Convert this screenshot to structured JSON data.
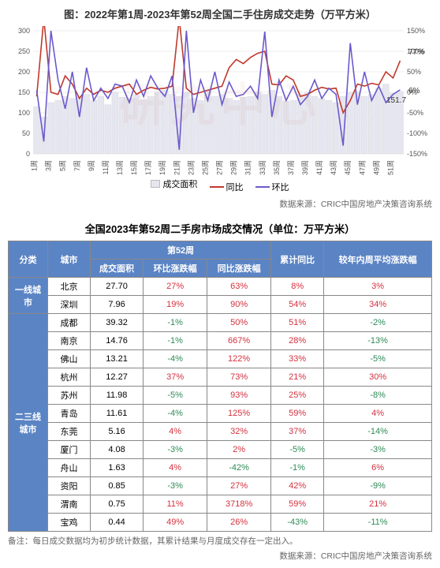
{
  "chart": {
    "title": "图：2022年第1周-2023年第52周全国二手住房成交走势（万平方米）",
    "type": "combo-bar-line",
    "y1label_ticks": [
      0,
      50,
      100,
      150,
      200,
      250,
      300
    ],
    "y2label_ticks": [
      -150,
      -100,
      -50,
      0,
      50,
      100,
      150
    ],
    "y1lim": [
      0,
      300
    ],
    "y2lim": [
      -150,
      150
    ],
    "x_labels": [
      "1周",
      "3周",
      "5周",
      "7周",
      "9周",
      "11周",
      "13周",
      "15周",
      "17周",
      "19周",
      "21周",
      "23周",
      "25周",
      "27周",
      "29周",
      "31周",
      "33周",
      "35周",
      "37周",
      "39周",
      "41周",
      "43周",
      "45周",
      "47周",
      "49周",
      "51周"
    ],
    "bar_color": "#e6e6f0",
    "line1_color": "#c0392b",
    "line2_color": "#6a5acd",
    "axis_fontsize": 9,
    "title_fontsize": 13,
    "annotations": {
      "a1": "77%",
      "a2": "6%",
      "a3": "151.7"
    },
    "legend": {
      "bars": "成交面积",
      "line1": "同比",
      "line2": "环比"
    },
    "bars": [
      115,
      90,
      125,
      130,
      140,
      135,
      140,
      145,
      130,
      140,
      120,
      150,
      138,
      135,
      145,
      132,
      140,
      150,
      155,
      145,
      140,
      150,
      135,
      130,
      155,
      140,
      145,
      135,
      130,
      138,
      140,
      150,
      145,
      155,
      140,
      128,
      130,
      145,
      150,
      140,
      135,
      130,
      125,
      140,
      150,
      152,
      140,
      145,
      160,
      170,
      148,
      152
    ],
    "yoy": [
      -10,
      180,
      0,
      -5,
      40,
      20,
      -15,
      10,
      -5,
      5,
      0,
      10,
      15,
      20,
      -5,
      5,
      12,
      8,
      10,
      15,
      180,
      10,
      -5,
      0,
      5,
      10,
      15,
      60,
      80,
      70,
      85,
      95,
      100,
      20,
      18,
      40,
      30,
      -10,
      -5,
      5,
      12,
      8,
      10,
      -50,
      -20,
      20,
      15,
      22,
      18,
      50,
      35,
      77
    ],
    "mom": [
      5,
      -120,
      150,
      30,
      -40,
      50,
      -60,
      60,
      -20,
      10,
      -15,
      20,
      15,
      -25,
      30,
      -10,
      40,
      10,
      -10,
      40,
      -140,
      150,
      -50,
      30,
      -20,
      50,
      -30,
      25,
      -10,
      -5,
      15,
      -15,
      148,
      -60,
      30,
      -20,
      15,
      -30,
      -10,
      30,
      -15,
      10,
      -5,
      -130,
      120,
      -30,
      50,
      -20,
      15,
      -25,
      -5,
      6
    ],
    "watermark": "研究中心"
  },
  "source": "数据来源：CRIC中国房地产决策咨询系统",
  "table": {
    "title": "全国2023年第52周二手房市场成交情况（单位：万平方米）",
    "headers": {
      "cat": "分类",
      "city": "城市",
      "week": "第52周",
      "area": "成交面积",
      "mom": "环比涨跌幅",
      "yoy": "同比涨跌幅",
      "cum": "累计同比",
      "avg": "较年内周平均涨跌幅"
    },
    "groups": [
      {
        "name": "一线城市",
        "rows": [
          {
            "city": "北京",
            "area": "27.70",
            "mom": "27%",
            "yoy": "63%",
            "cum": "8%",
            "avg": "3%"
          },
          {
            "city": "深圳",
            "area": "7.96",
            "mom": "19%",
            "yoy": "90%",
            "cum": "54%",
            "avg": "34%"
          }
        ]
      },
      {
        "name": "二三线城市",
        "rows": [
          {
            "city": "成都",
            "area": "39.32",
            "mom": "-1%",
            "yoy": "50%",
            "cum": "51%",
            "avg": "-2%"
          },
          {
            "city": "南京",
            "area": "14.76",
            "mom": "-1%",
            "yoy": "667%",
            "cum": "28%",
            "avg": "-13%"
          },
          {
            "city": "佛山",
            "area": "13.21",
            "mom": "-4%",
            "yoy": "122%",
            "cum": "33%",
            "avg": "-5%"
          },
          {
            "city": "杭州",
            "area": "12.27",
            "mom": "37%",
            "yoy": "73%",
            "cum": "21%",
            "avg": "30%"
          },
          {
            "city": "苏州",
            "area": "11.98",
            "mom": "-5%",
            "yoy": "93%",
            "cum": "25%",
            "avg": "-8%"
          },
          {
            "city": "青岛",
            "area": "11.61",
            "mom": "-4%",
            "yoy": "125%",
            "cum": "59%",
            "avg": "4%"
          },
          {
            "city": "东莞",
            "area": "5.16",
            "mom": "4%",
            "yoy": "32%",
            "cum": "37%",
            "avg": "-14%"
          },
          {
            "city": "厦门",
            "area": "4.08",
            "mom": "-3%",
            "yoy": "2%",
            "cum": "-5%",
            "avg": "-3%"
          },
          {
            "city": "舟山",
            "area": "1.63",
            "mom": "4%",
            "yoy": "-42%",
            "cum": "-1%",
            "avg": "6%"
          },
          {
            "city": "资阳",
            "area": "0.85",
            "mom": "-3%",
            "yoy": "27%",
            "cum": "42%",
            "avg": "-9%"
          },
          {
            "city": "渭南",
            "area": "0.75",
            "mom": "11%",
            "yoy": "3718%",
            "cum": "59%",
            "avg": "21%"
          },
          {
            "city": "宝鸡",
            "area": "0.44",
            "mom": "49%",
            "yoy": "26%",
            "cum": "-43%",
            "avg": "-11%"
          }
        ]
      }
    ]
  },
  "footnote": "备注：每日成交数据均为初步统计数据，其累计结果与月度成交存在一定出入。"
}
